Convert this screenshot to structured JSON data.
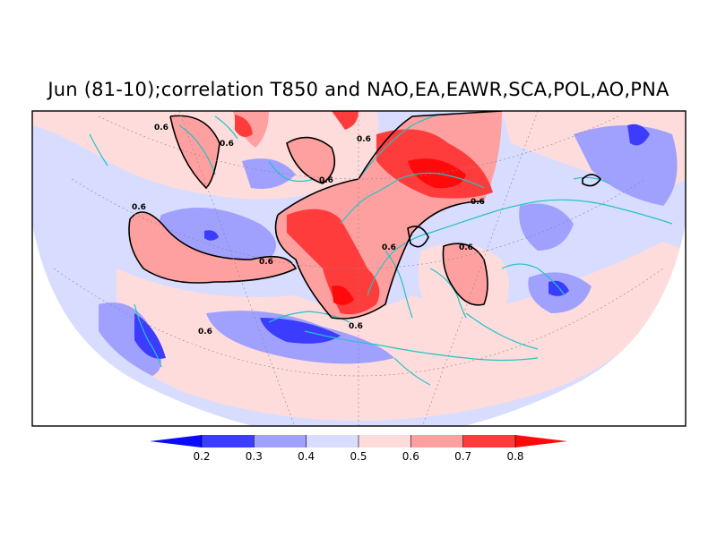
{
  "title": "Jun (81-10);correlation T850 and NAO,EA,EAWR,SCA,POL,AO,PNA",
  "map": {
    "projection": "polar-stereographic",
    "region": "Europe / North Atlantic / North Africa",
    "coastline_color": "#22c4c4",
    "contour_color": "#000000",
    "contour_level": 0.6,
    "contour_labels": [
      "0.6",
      "0.6",
      "0.6",
      "0.6",
      "0.6",
      "0.6",
      "0.6",
      "0.6",
      "0.6",
      "0.6",
      "0.6"
    ]
  },
  "colorbar": {
    "tick_labels": [
      "0.2",
      "0.3",
      "0.4",
      "0.5",
      "0.6",
      "0.7",
      "0.8"
    ],
    "colors": [
      "#0a0aff",
      "#3c3cff",
      "#a0a0ff",
      "#d8dcff",
      "#ffdcdc",
      "#ffa0a0",
      "#ff3c3c",
      "#ff0a0a"
    ],
    "extend": "both"
  }
}
